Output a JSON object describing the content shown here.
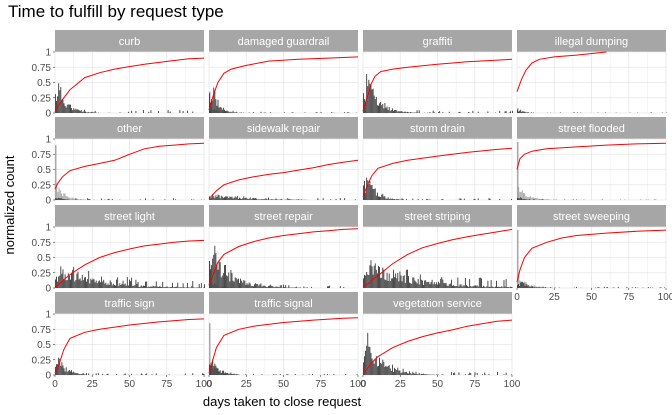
{
  "chart_data": {
    "type": "faceted-histogram-with-cumulative-line",
    "title": "Time to fulfill by request type",
    "xlabel": "days taken to close request",
    "ylabel": "normalized count",
    "xlim": [
      0,
      100
    ],
    "ylim": [
      0,
      1
    ],
    "x_ticks": [
      0,
      25,
      50,
      75,
      100
    ],
    "y_ticks": [
      0,
      0.25,
      0.5,
      0.75,
      1
    ],
    "y_tick_labels": [
      "0",
      "0.25",
      "0.5",
      "0.75",
      "1"
    ],
    "grid": true,
    "colors": {
      "strip_background": "#a6a6a6",
      "strip_text": "#ffffff",
      "histogram": "#3a3a3a",
      "histogram_light": "#a8a8a8",
      "cumulative_line": "#ff0000",
      "grid": "#e6e6e6"
    },
    "facets": [
      {
        "label": "curb",
        "cumulative": [
          [
            0,
            0.02
          ],
          [
            2,
            0.12
          ],
          [
            5,
            0.22
          ],
          [
            10,
            0.38
          ],
          [
            20,
            0.58
          ],
          [
            30,
            0.66
          ],
          [
            40,
            0.72
          ],
          [
            50,
            0.76
          ],
          [
            60,
            0.8
          ],
          [
            70,
            0.83
          ],
          [
            80,
            0.86
          ],
          [
            90,
            0.89
          ],
          [
            100,
            0.9
          ]
        ],
        "histogram": {
          "peak": 0.8,
          "spread": 6,
          "tail": 0.05,
          "light_peak": 0
        }
      },
      {
        "label": "damaged guardrail",
        "cumulative": [
          [
            0,
            0.05
          ],
          [
            3,
            0.3
          ],
          [
            6,
            0.5
          ],
          [
            10,
            0.65
          ],
          [
            15,
            0.72
          ],
          [
            25,
            0.78
          ],
          [
            40,
            0.85
          ],
          [
            60,
            0.88
          ],
          [
            80,
            0.9
          ],
          [
            100,
            0.92
          ]
        ],
        "histogram": {
          "peak": 0.95,
          "spread": 4,
          "tail": 0.02,
          "light_peak": 0.35
        }
      },
      {
        "label": "graffiti",
        "cumulative": [
          [
            0,
            0.03
          ],
          [
            2,
            0.2
          ],
          [
            5,
            0.45
          ],
          [
            8,
            0.6
          ],
          [
            12,
            0.68
          ],
          [
            20,
            0.72
          ],
          [
            30,
            0.75
          ],
          [
            50,
            0.8
          ],
          [
            70,
            0.84
          ],
          [
            100,
            0.88
          ]
        ],
        "histogram": {
          "peak": 0.9,
          "spread": 8,
          "tail": 0.04,
          "light_peak": 0
        }
      },
      {
        "label": "illegal dumping",
        "cumulative": [
          [
            0,
            0.35
          ],
          [
            3,
            0.55
          ],
          [
            6,
            0.7
          ],
          [
            10,
            0.82
          ],
          [
            15,
            0.88
          ],
          [
            25,
            0.92
          ],
          [
            40,
            0.95
          ],
          [
            60,
            1.0
          ]
        ],
        "histogram": {
          "peak": 0.12,
          "spread": 3,
          "tail": 0.01,
          "light_peak": 0.08
        }
      },
      {
        "label": "other",
        "cumulative": [
          [
            0,
            0.18
          ],
          [
            2,
            0.28
          ],
          [
            5,
            0.38
          ],
          [
            10,
            0.48
          ],
          [
            20,
            0.55
          ],
          [
            30,
            0.6
          ],
          [
            40,
            0.65
          ],
          [
            50,
            0.75
          ],
          [
            60,
            0.84
          ],
          [
            70,
            0.88
          ],
          [
            80,
            0.9
          ],
          [
            90,
            0.92
          ],
          [
            100,
            0.93
          ]
        ],
        "histogram": {
          "peak": 0.08,
          "spread": 4,
          "tail": 0.03,
          "light_peak": 0.9
        }
      },
      {
        "label": "sidewalk repair",
        "cumulative": [
          [
            0,
            0.02
          ],
          [
            5,
            0.15
          ],
          [
            10,
            0.25
          ],
          [
            20,
            0.33
          ],
          [
            30,
            0.38
          ],
          [
            40,
            0.42
          ],
          [
            50,
            0.45
          ],
          [
            60,
            0.49
          ],
          [
            70,
            0.53
          ],
          [
            80,
            0.58
          ],
          [
            90,
            0.62
          ],
          [
            100,
            0.65
          ]
        ],
        "histogram": {
          "peak": 0.12,
          "spread": 20,
          "tail": 0.03,
          "light_peak": 0
        }
      },
      {
        "label": "storm drain",
        "cumulative": [
          [
            0,
            0.05
          ],
          [
            3,
            0.25
          ],
          [
            6,
            0.4
          ],
          [
            10,
            0.52
          ],
          [
            20,
            0.6
          ],
          [
            30,
            0.65
          ],
          [
            50,
            0.72
          ],
          [
            70,
            0.78
          ],
          [
            90,
            0.83
          ],
          [
            100,
            0.85
          ]
        ],
        "histogram": {
          "peak": 0.75,
          "spread": 6,
          "tail": 0.03,
          "light_peak": 0
        }
      },
      {
        "label": "street flooded",
        "cumulative": [
          [
            0,
            0.5
          ],
          [
            2,
            0.68
          ],
          [
            5,
            0.75
          ],
          [
            10,
            0.8
          ],
          [
            20,
            0.84
          ],
          [
            40,
            0.87
          ],
          [
            60,
            0.9
          ],
          [
            80,
            0.92
          ],
          [
            100,
            0.93
          ]
        ],
        "histogram": {
          "peak": 0.1,
          "spread": 3,
          "tail": 0.01,
          "light_peak": 0.95
        }
      },
      {
        "label": "street light",
        "cumulative": [
          [
            0,
            0.01
          ],
          [
            5,
            0.12
          ],
          [
            10,
            0.22
          ],
          [
            20,
            0.38
          ],
          [
            30,
            0.5
          ],
          [
            40,
            0.58
          ],
          [
            50,
            0.64
          ],
          [
            60,
            0.69
          ],
          [
            70,
            0.72
          ],
          [
            80,
            0.75
          ],
          [
            90,
            0.77
          ],
          [
            100,
            0.78
          ]
        ],
        "histogram": {
          "peak": 0.45,
          "spread": 25,
          "tail": 0.12,
          "light_peak": 0
        }
      },
      {
        "label": "street repair",
        "cumulative": [
          [
            0,
            0.05
          ],
          [
            3,
            0.25
          ],
          [
            6,
            0.42
          ],
          [
            10,
            0.55
          ],
          [
            20,
            0.68
          ],
          [
            30,
            0.76
          ],
          [
            40,
            0.82
          ],
          [
            50,
            0.86
          ],
          [
            60,
            0.89
          ],
          [
            70,
            0.92
          ],
          [
            80,
            0.94
          ],
          [
            90,
            0.96
          ],
          [
            100,
            0.97
          ]
        ],
        "histogram": {
          "peak": 0.95,
          "spread": 12,
          "tail": 0.05,
          "light_peak": 0.4
        }
      },
      {
        "label": "street striping",
        "cumulative": [
          [
            0,
            0.02
          ],
          [
            5,
            0.1
          ],
          [
            10,
            0.2
          ],
          [
            20,
            0.4
          ],
          [
            30,
            0.55
          ],
          [
            40,
            0.66
          ],
          [
            50,
            0.73
          ],
          [
            60,
            0.79
          ],
          [
            70,
            0.84
          ],
          [
            80,
            0.88
          ],
          [
            90,
            0.92
          ],
          [
            100,
            0.96
          ]
        ],
        "histogram": {
          "peak": 0.55,
          "spread": 30,
          "tail": 0.15,
          "light_peak": 0
        }
      },
      {
        "label": "street sweeping",
        "cumulative": [
          [
            0,
            0.1
          ],
          [
            2,
            0.3
          ],
          [
            5,
            0.5
          ],
          [
            10,
            0.65
          ],
          [
            20,
            0.75
          ],
          [
            30,
            0.82
          ],
          [
            40,
            0.86
          ],
          [
            60,
            0.9
          ],
          [
            80,
            0.93
          ],
          [
            100,
            0.95
          ]
        ],
        "histogram": {
          "peak": 0.2,
          "spread": 5,
          "tail": 0.02,
          "light_peak": 0.95
        }
      },
      {
        "label": "traffic sign",
        "cumulative": [
          [
            0,
            0.03
          ],
          [
            3,
            0.2
          ],
          [
            6,
            0.42
          ],
          [
            10,
            0.6
          ],
          [
            20,
            0.7
          ],
          [
            30,
            0.75
          ],
          [
            50,
            0.82
          ],
          [
            70,
            0.87
          ],
          [
            90,
            0.91
          ],
          [
            100,
            0.92
          ]
        ],
        "histogram": {
          "peak": 0.55,
          "spread": 5,
          "tail": 0.03,
          "light_peak": 0
        }
      },
      {
        "label": "traffic signal",
        "cumulative": [
          [
            0,
            0.03
          ],
          [
            2,
            0.2
          ],
          [
            5,
            0.45
          ],
          [
            10,
            0.65
          ],
          [
            20,
            0.75
          ],
          [
            30,
            0.8
          ],
          [
            50,
            0.86
          ],
          [
            70,
            0.9
          ],
          [
            90,
            0.93
          ],
          [
            100,
            0.94
          ]
        ],
        "histogram": {
          "peak": 0.45,
          "spread": 5,
          "tail": 0.02,
          "light_peak": 0.85
        }
      },
      {
        "label": "vegetation service",
        "cumulative": [
          [
            0,
            0.02
          ],
          [
            5,
            0.18
          ],
          [
            10,
            0.3
          ],
          [
            20,
            0.45
          ],
          [
            30,
            0.55
          ],
          [
            40,
            0.63
          ],
          [
            50,
            0.69
          ],
          [
            60,
            0.74
          ],
          [
            70,
            0.8
          ],
          [
            80,
            0.84
          ],
          [
            90,
            0.88
          ],
          [
            100,
            0.9
          ]
        ],
        "histogram": {
          "peak": 0.95,
          "spread": 10,
          "tail": 0.05,
          "light_peak": 0
        }
      }
    ]
  }
}
